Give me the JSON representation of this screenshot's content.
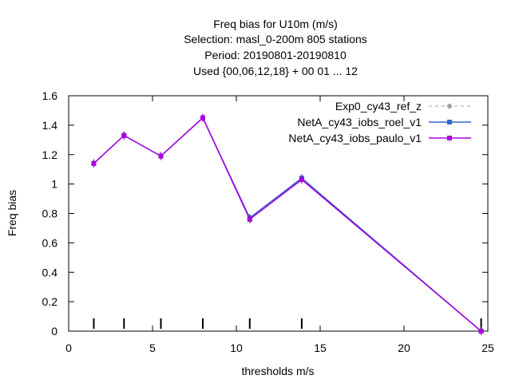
{
  "chart_data": {
    "type": "line",
    "title_lines": [
      "Freq bias  for U10m (m/s)",
      "Selection: masl_0-200m    805 stations",
      "Period: 20190801-20190810",
      "Used {00,06,12,18} + 00 01 ... 12"
    ],
    "xlabel": "thresholds m/s",
    "ylabel": "Freq bias",
    "xlim": [
      0,
      25
    ],
    "ylim": [
      0,
      1.6
    ],
    "xticks": [
      0,
      5,
      10,
      15,
      20,
      25
    ],
    "yticks": [
      0,
      0.2,
      0.4,
      0.6,
      0.8,
      1,
      1.2,
      1.4,
      1.6
    ],
    "ytick_labels": [
      "0",
      "0.2",
      "0.4",
      "0.6",
      "0.8",
      "1",
      "1.2",
      "1.4",
      "1.6"
    ],
    "grid": false,
    "legend_position": "top-right",
    "threshold_markers": [
      1.5,
      3.3,
      5.5,
      8.0,
      10.8,
      13.9,
      24.6
    ],
    "series": [
      {
        "name": "Exp0_cy43_ref_z",
        "color": "#a0a0a0",
        "dashed": true,
        "marker": "circle",
        "x": [
          1.5,
          3.3,
          5.5,
          8.0,
          10.8,
          13.9,
          24.6
        ],
        "y": [
          1.14,
          1.33,
          1.19,
          1.45,
          0.77,
          1.04,
          0.0
        ]
      },
      {
        "name": "NetA_cy43_iobs_roel_v1",
        "color": "#3366cc",
        "dashed": false,
        "marker": "square",
        "x": [
          1.5,
          3.3,
          5.5,
          8.0,
          10.8,
          13.9,
          24.6
        ],
        "y": [
          1.14,
          1.33,
          1.19,
          1.45,
          0.77,
          1.04,
          0.0
        ]
      },
      {
        "name": "NetA_cy43_iobs_paulo_v1",
        "color": "#aa00dd",
        "dashed": false,
        "marker": "square",
        "x": [
          1.5,
          3.3,
          5.5,
          8.0,
          10.8,
          13.9,
          24.6
        ],
        "y": [
          1.14,
          1.33,
          1.19,
          1.45,
          0.76,
          1.03,
          0.0
        ]
      }
    ]
  }
}
